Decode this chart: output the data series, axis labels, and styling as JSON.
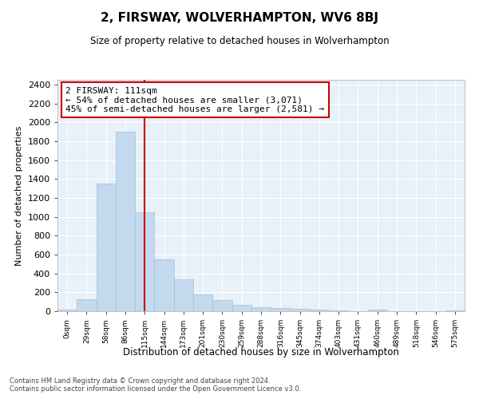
{
  "title": "2, FIRSWAY, WOLVERHAMPTON, WV6 8BJ",
  "subtitle": "Size of property relative to detached houses in Wolverhampton",
  "xlabel": "Distribution of detached houses by size in Wolverhampton",
  "ylabel": "Number of detached properties",
  "bar_color": "#c2d9ee",
  "bar_edge_color": "#a0c0e0",
  "bg_color": "#e8f0f8",
  "grid_color": "#ffffff",
  "vline_color": "#cc0000",
  "vline_x_index": 4,
  "annotation_line1": "2 FIRSWAY: 111sqm",
  "annotation_line2": "← 54% of detached houses are smaller (3,071)",
  "annotation_line3": "45% of semi-detached houses are larger (2,581) →",
  "bins": [
    "0sqm",
    "29sqm",
    "58sqm",
    "86sqm",
    "115sqm",
    "144sqm",
    "173sqm",
    "201sqm",
    "230sqm",
    "259sqm",
    "288sqm",
    "316sqm",
    "345sqm",
    "374sqm",
    "403sqm",
    "431sqm",
    "460sqm",
    "489sqm",
    "518sqm",
    "546sqm",
    "575sqm"
  ],
  "values": [
    15,
    130,
    1350,
    1900,
    1050,
    550,
    340,
    175,
    115,
    65,
    40,
    30,
    25,
    20,
    10,
    0,
    20,
    0,
    0,
    0,
    10
  ],
  "ylim": [
    0,
    2450
  ],
  "yticks": [
    0,
    200,
    400,
    600,
    800,
    1000,
    1200,
    1400,
    1600,
    1800,
    2000,
    2200,
    2400
  ],
  "footnote1": "Contains HM Land Registry data © Crown copyright and database right 2024.",
  "footnote2": "Contains public sector information licensed under the Open Government Licence v3.0."
}
